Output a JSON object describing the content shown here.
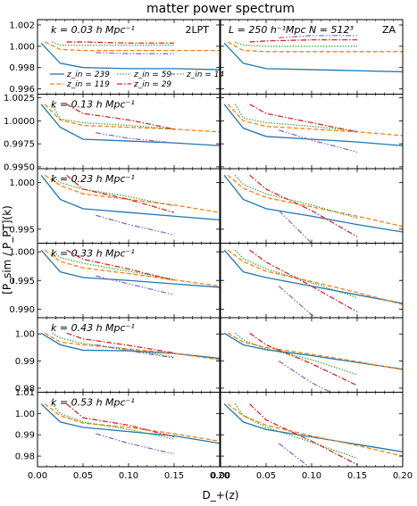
{
  "figure": {
    "title": "matter power spectrum",
    "xlabel": "D_+(z)",
    "ylabel": "[P_sim / P_PT](k)",
    "left_method": "2LPT",
    "right_method": "ZA",
    "right_info": "L = 250 h⁻¹Mpc   N = 512³"
  },
  "legend": [
    {
      "name": "z_in = 239",
      "color": "#1f77b4",
      "dash": "solid"
    },
    {
      "name": "z_in = 119",
      "color": "#ff7f0e",
      "dash": "dashed"
    },
    {
      "name": "z_in = 59",
      "color": "#2ca02c",
      "dash": "dotted"
    },
    {
      "name": "z_in = 29",
      "color": "#d62728",
      "dash": "dashdot"
    },
    {
      "name": "z_in = 14",
      "color": "#9467bd",
      "dash": "dashdotdot"
    }
  ],
  "chart_data": {
    "type": "line",
    "xlim": [
      0.0,
      0.2
    ],
    "xticks": [
      "0.00",
      "0.05",
      "0.10",
      "0.15",
      "0.20"
    ],
    "x_start": [
      0.004,
      0.008,
      0.016,
      0.032,
      0.064
    ],
    "rows": [
      {
        "k_label": "k = 0.03 h Mpc⁻¹",
        "ylim": [
          0.9955,
          1.0025
        ],
        "yticks": [
          0.996,
          0.998,
          1.0,
          1.002
        ],
        "ytick_labels": [
          "0.996",
          "0.998",
          "1.000",
          "1.002"
        ],
        "left": [
          [
            1.0003,
            0.9984,
            0.998,
            0.9979,
            0.9979,
            0.9978
          ],
          [
            1.0004,
            0.9997,
            0.9996,
            0.9996,
            0.9996,
            0.9996
          ],
          [
            1.0004,
            1.0001,
            1.0001,
            1.0001,
            1.0001
          ],
          [
            1.0004,
            1.0004,
            1.0003,
            1.0003
          ],
          [
            0.9994,
            0.9993,
            0.9993
          ]
        ],
        "right": [
          [
            1.0003,
            0.9984,
            0.9979,
            0.9978,
            0.9977,
            0.9976
          ],
          [
            1.0004,
            0.9996,
            0.9995,
            0.9995,
            0.9995,
            0.9995
          ],
          [
            1.0004,
            1.0001,
            1.0,
            1.0,
            1.0
          ],
          [
            1.0004,
            1.0005,
            1.0006,
            1.0006
          ],
          [
            1.0008,
            1.001,
            1.001
          ]
        ]
      },
      {
        "k_label": "k = 0.13 h Mpc⁻¹",
        "ylim": [
          0.9948,
          1.0029
        ],
        "yticks": [
          0.995,
          0.9975,
          1.0,
          1.0025
        ],
        "ytick_labels": [
          "0.9950",
          "0.9975",
          "1.0000",
          "1.0025"
        ],
        "left": [
          [
            1.0018,
            0.9993,
            0.998,
            0.9978,
            0.9976,
            0.9973
          ],
          [
            1.0018,
            1.0001,
            0.9995,
            0.9993,
            0.9991,
            0.9988
          ],
          [
            1.0018,
            1.0002,
            0.9998,
            0.9995,
            0.9991
          ],
          [
            1.0018,
            1.0008,
            1.0001,
            0.9991
          ],
          [
            0.9987,
            0.9981,
            0.9976
          ]
        ],
        "right": [
          [
            1.0018,
            0.9992,
            0.9983,
            0.998,
            0.9977,
            0.9973
          ],
          [
            1.0018,
            1.0,
            0.9994,
            0.9991,
            0.9988,
            0.9984
          ],
          [
            1.0018,
            1.0003,
            0.9998,
            0.9994,
            0.9989
          ],
          [
            1.0018,
            1.0008,
            0.9998,
            0.9988
          ],
          [
            0.999,
            0.9979,
            0.9966
          ]
        ]
      },
      {
        "k_label": "k = 0.23 h Mpc⁻¹",
        "ylim": [
          0.9935,
          1.0015
        ],
        "yticks": [
          0.995,
          1.0
        ],
        "ytick_labels": [
          "0.995",
          "1.000"
        ],
        "left": [
          [
            1.0008,
            0.9982,
            0.9972,
            0.9968,
            0.9964,
            0.996
          ],
          [
            1.0008,
            0.9997,
            0.9988,
            0.9982,
            0.9976,
            0.9968
          ],
          [
            1.0008,
            1.0,
            0.9993,
            0.9985,
            0.9975
          ],
          [
            1.0008,
            0.9993,
            0.9982,
            0.9968
          ],
          [
            0.9965,
            0.9955,
            0.9944
          ]
        ],
        "right": [
          [
            1.0008,
            0.9982,
            0.9972,
            0.9964,
            0.9955,
            0.9947
          ],
          [
            1.0008,
            0.9994,
            0.9984,
            0.9974,
            0.9964,
            0.9953
          ],
          [
            1.0008,
            0.9998,
            0.9988,
            0.9976,
            0.9962
          ],
          [
            1.0008,
            0.9993,
            0.997,
            0.9942
          ],
          [
            0.997,
            0.9935,
            0.99
          ]
        ]
      },
      {
        "k_label": "k = 0.33 h Mpc⁻¹",
        "ylim": [
          0.9885,
          1.0015
        ],
        "yticks": [
          0.99,
          0.995,
          1.0
        ],
        "ytick_labels": [
          "0.990",
          "0.995",
          "1.000"
        ],
        "left": [
          [
            1.0003,
            0.9965,
            0.9955,
            0.995,
            0.9944,
            0.9938
          ],
          [
            1.0003,
            0.9983,
            0.9972,
            0.9962,
            0.9951,
            0.994
          ],
          [
            1.0003,
            0.999,
            0.998,
            0.9966,
            0.9952
          ],
          [
            1.0003,
            0.9987,
            0.997,
            0.995
          ],
          [
            0.9958,
            0.9944,
            0.9925
          ]
        ],
        "right": [
          [
            1.0003,
            0.9965,
            0.9955,
            0.994,
            0.9925,
            0.991
          ],
          [
            1.0003,
            0.9983,
            0.9966,
            0.9948,
            0.9929,
            0.9908
          ],
          [
            1.0003,
            0.9988,
            0.997,
            0.9946,
            0.992
          ],
          [
            1.0003,
            0.9982,
            0.994,
            0.9895
          ],
          [
            0.994,
            0.989,
            0.9835
          ]
        ]
      },
      {
        "k_label": "k = 0.43 h Mpc⁻¹",
        "ylim": [
          0.9785,
          1.006
        ],
        "yticks": [
          0.98,
          0.99,
          1.0
        ],
        "ytick_labels": [
          "0.98",
          "0.99",
          "1.00"
        ],
        "left": [
          [
            1.0003,
            0.996,
            0.994,
            0.9938,
            0.9928,
            0.991
          ],
          [
            1.0003,
            0.997,
            0.996,
            0.9945,
            0.9928,
            0.9905
          ],
          [
            1.0003,
            0.9985,
            0.9965,
            0.9942,
            0.9915
          ],
          [
            1.0003,
            0.9982,
            0.9958,
            0.993
          ],
          [
            0.996,
            0.9938,
            0.9912
          ]
        ],
        "right": [
          [
            1.0003,
            0.996,
            0.9942,
            0.992,
            0.9895,
            0.987
          ],
          [
            1.0003,
            0.997,
            0.995,
            0.9925,
            0.9898,
            0.9868
          ],
          [
            1.0003,
            0.9978,
            0.9945,
            0.9905,
            0.985
          ],
          [
            1.0003,
            0.996,
            0.989,
            0.981
          ],
          [
            0.99,
            0.982,
            0.9735
          ]
        ]
      },
      {
        "k_label": "k = 0.53 h Mpc⁻¹",
        "ylim": [
          0.975,
          1.01
        ],
        "yticks": [
          0.98,
          0.99,
          1.0,
          1.01
        ],
        "ytick_labels": [
          "0.98",
          "0.99",
          "1.00",
          "1.01"
        ],
        "left": [
          [
            1.0045,
            0.996,
            0.9935,
            0.9915,
            0.9895,
            0.986
          ],
          [
            1.0045,
            0.999,
            0.9955,
            0.9935,
            0.9905,
            0.987
          ],
          [
            1.0045,
            1.0,
            0.996,
            0.9925,
            0.988
          ],
          [
            1.0045,
            0.998,
            0.9945,
            0.989
          ],
          [
            0.9905,
            0.986,
            0.981
          ]
        ],
        "right": [
          [
            1.0045,
            0.996,
            0.9925,
            0.989,
            0.9855,
            0.982
          ],
          [
            1.0045,
            0.999,
            0.9945,
            0.9895,
            0.985,
            0.98
          ],
          [
            1.0045,
            0.999,
            0.9935,
            0.9865,
            0.979
          ],
          [
            1.0045,
            0.997,
            0.987,
            0.976
          ],
          [
            0.986,
            0.974,
            0.962
          ]
        ]
      }
    ]
  }
}
